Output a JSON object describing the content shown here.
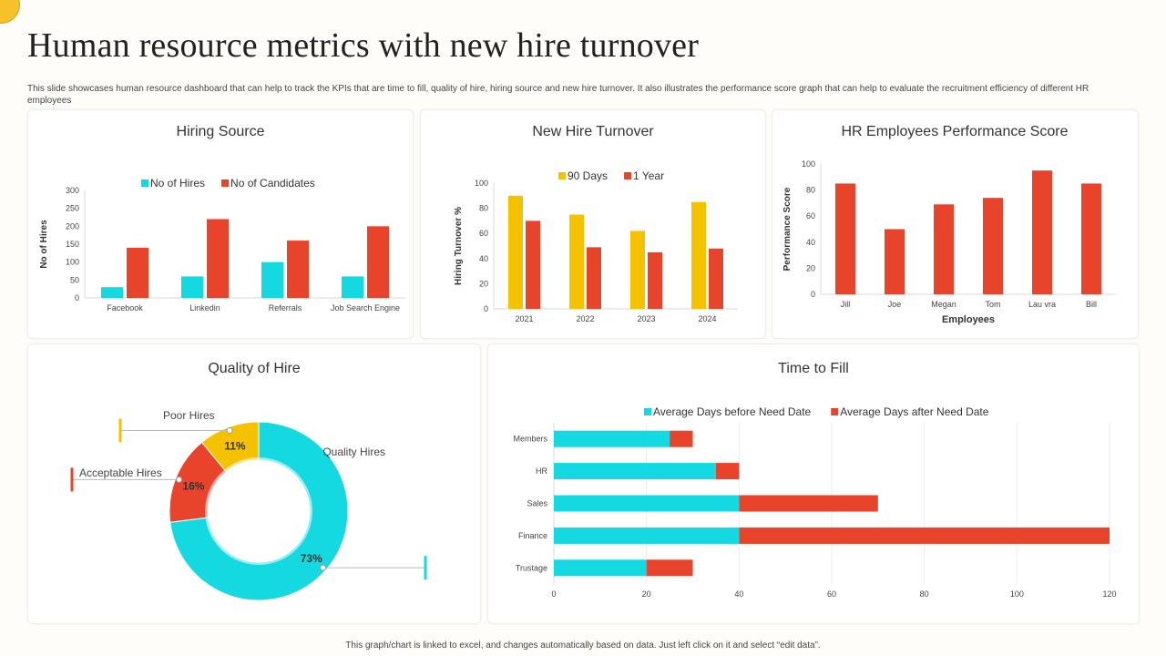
{
  "page": {
    "title": "Human resource metrics with new hire turnover",
    "subtitle": "This slide showcases human resource dashboard that can help to track the KPIs that are time to fill, quality of hire, hiring source and new hire turnover. It also illustrates the performance score graph that can help to evaluate the recruitment efficiency of different HR employees",
    "footer": "This graph/chart is linked to excel, and changes automatically based on data. Just left click on it and select “edit data”."
  },
  "colors": {
    "cyan": "#14d9e0",
    "red": "#e8432b",
    "yellow": "#f5c200",
    "accent": "#f6c12b"
  },
  "chart_data": [
    {
      "id": "hiring_source",
      "type": "bar",
      "title": "Hiring Source",
      "categories": [
        "Facebook",
        "Linkedin",
        "Referrals",
        "Job Search Engine"
      ],
      "series": [
        {
          "name": "No of Hires",
          "color": "#14d9e0",
          "values": [
            30,
            60,
            100,
            60
          ]
        },
        {
          "name": "No of Candidates",
          "color": "#e8432b",
          "values": [
            140,
            220,
            160,
            200
          ]
        }
      ],
      "ylabel": "No of Hires",
      "xlabel": "",
      "ylim": [
        0,
        300
      ],
      "yticks": [
        0,
        50,
        100,
        150,
        200,
        250,
        300
      ],
      "legend": "top",
      "grid": false
    },
    {
      "id": "new_hire_turnover",
      "type": "bar",
      "title": "New Hire Turnover",
      "categories": [
        "2021",
        "2022",
        "2023",
        "2024"
      ],
      "series": [
        {
          "name": "90 Days",
          "color": "#f5c200",
          "values": [
            90,
            75,
            62,
            85
          ]
        },
        {
          "name": "1 Year",
          "color": "#e8432b",
          "values": [
            70,
            49,
            45,
            48
          ]
        }
      ],
      "ylabel": "Hiring Turnover %",
      "xlabel": "",
      "ylim": [
        0,
        100
      ],
      "yticks": [
        0,
        20,
        40,
        60,
        80,
        100
      ],
      "legend": "top",
      "grid": false
    },
    {
      "id": "performance_score",
      "type": "bar",
      "title": "HR Employees Performance Score",
      "categories": [
        "Jill",
        "Joe",
        "Megan",
        "Tom",
        "Lau vra",
        "Bill"
      ],
      "series": [
        {
          "name": "",
          "color": "#e8432b",
          "values": [
            85,
            50,
            69,
            74,
            95,
            85
          ]
        }
      ],
      "ylabel": "Performance Score",
      "xlabel": "Employees",
      "ylim": [
        0,
        100
      ],
      "yticks": [
        0,
        20,
        40,
        60,
        80,
        100
      ],
      "legend": "none",
      "grid": false
    },
    {
      "id": "quality_of_hire",
      "type": "pie",
      "title": "Quality of Hire",
      "slices": [
        {
          "label": "Quality Hires",
          "value": 73,
          "display": "73%",
          "color": "#14d9e0"
        },
        {
          "label": "Acceptable Hires",
          "value": 16,
          "display": "16%",
          "color": "#e8432b"
        },
        {
          "label": "Poor Hires",
          "value": 11,
          "display": "11%",
          "color": "#f5c200"
        }
      ],
      "legend": "callouts"
    },
    {
      "id": "time_to_fill",
      "type": "bar",
      "orientation": "horizontal",
      "stacked": true,
      "title": "Time to Fill",
      "categories": [
        "Members",
        "HR",
        "Sales",
        "Finance",
        "Trustage"
      ],
      "series": [
        {
          "name": "Average Days before Need Date",
          "color": "#14d9e0",
          "values": [
            25,
            35,
            40,
            40,
            20
          ]
        },
        {
          "name": "Average Days after Need Date",
          "color": "#e8432b",
          "values": [
            5,
            5,
            30,
            80,
            10
          ]
        }
      ],
      "xlabel": "",
      "ylabel": "",
      "xlim": [
        0,
        120
      ],
      "xticks": [
        0,
        20,
        40,
        60,
        80,
        100,
        120
      ],
      "legend": "top",
      "grid": true
    }
  ]
}
